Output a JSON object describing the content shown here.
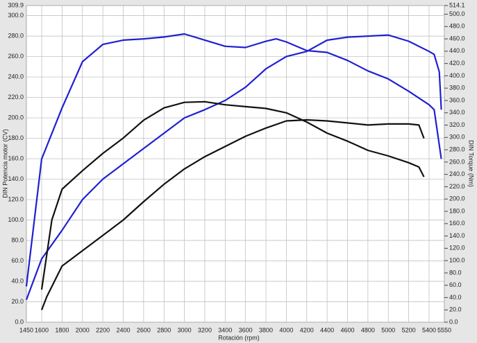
{
  "chart_data": {
    "type": "line",
    "xlabel": "Rotación (rpm)",
    "ylabel": "DIN Potencia motor (CV)",
    "y2label": "DIN Torque (Nm)",
    "xlim": [
      1450,
      5550
    ],
    "xticks": [
      1450,
      1600,
      1800,
      2000,
      2200,
      2400,
      2600,
      2800,
      3000,
      3200,
      3400,
      3600,
      3800,
      4000,
      4200,
      4400,
      4600,
      4800,
      5000,
      5200,
      5400,
      5550
    ],
    "ylim": [
      0,
      309.9
    ],
    "yticks": [
      {
        "value": 0,
        "label": "0.0"
      },
      {
        "value": 20,
        "label": "20.0"
      },
      {
        "value": 40,
        "label": "40.0"
      },
      {
        "value": 60,
        "label": "60.0"
      },
      {
        "value": 80,
        "label": "80.0"
      },
      {
        "value": 100,
        "label": "100.0"
      },
      {
        "value": 120,
        "label": "120.0"
      },
      {
        "value": 140,
        "label": "140.0"
      },
      {
        "value": 160,
        "label": "160.0"
      },
      {
        "value": 180,
        "label": "180.0"
      },
      {
        "value": 200,
        "label": "200.0"
      },
      {
        "value": 220,
        "label": "220.0"
      },
      {
        "value": 240,
        "label": "240.0"
      },
      {
        "value": 260,
        "label": "260.0"
      },
      {
        "value": 280,
        "label": "280.0"
      },
      {
        "value": 300,
        "label": "300.0"
      },
      309.9
    ],
    "y2lim": [
      0,
      514.1
    ],
    "y2ticks": [
      {
        "value": 0,
        "label": "0.0"
      },
      {
        "value": 20,
        "label": "20.0"
      },
      {
        "value": 40,
        "label": "40.0"
      },
      {
        "value": 60,
        "label": "60.0"
      },
      {
        "value": 80,
        "label": "80.0"
      },
      {
        "value": 100,
        "label": "100.0"
      },
      {
        "value": 120,
        "label": "120.0"
      },
      {
        "value": 140,
        "label": "140.0"
      },
      {
        "value": 160,
        "label": "160.0"
      },
      {
        "value": 180,
        "label": "180.0"
      },
      {
        "value": 200,
        "label": "200.0"
      },
      {
        "value": 220,
        "label": "220.0"
      },
      {
        "value": 240,
        "label": "240.0"
      },
      {
        "value": 260,
        "label": "260.0"
      },
      {
        "value": 280,
        "label": "280.0"
      },
      {
        "value": 300,
        "label": "300.0"
      },
      {
        "value": 320,
        "label": "320.0"
      },
      {
        "value": 340,
        "label": "340.0"
      },
      {
        "value": 360,
        "label": "360.0"
      },
      {
        "value": 380,
        "label": "380.0"
      },
      {
        "value": 400,
        "label": "400.0"
      },
      {
        "value": 420,
        "label": "420.0"
      },
      {
        "value": 440,
        "label": "440.0"
      },
      {
        "value": 460,
        "label": "460.0"
      },
      {
        "value": 480,
        "label": "480.0"
      },
      {
        "value": 500,
        "label": "500.0"
      },
      514.1
    ],
    "grid": true,
    "series": [
      {
        "color": "#1f1fd2",
        "axis": "y2",
        "x": [
          1450,
          1600,
          1800,
          2000,
          2200,
          2400,
          2600,
          2800,
          3000,
          3200,
          3400,
          3600,
          3800,
          3900,
          4000,
          4200,
          4400,
          4600,
          4800,
          5000,
          5200,
          5400,
          5450,
          5520
        ],
        "values": [
          58,
          265,
          348,
          423,
          451,
          458,
          460,
          463,
          468,
          458,
          448,
          446,
          456,
          460,
          455,
          441,
          438,
          425,
          408,
          395,
          375,
          353,
          345,
          265
        ]
      },
      {
        "color": "#1f1fd2",
        "x": [
          1450,
          1600,
          1800,
          2000,
          2200,
          2400,
          2600,
          2800,
          3000,
          3200,
          3400,
          3600,
          3800,
          4000,
          4200,
          4400,
          4600,
          4800,
          5000,
          5200,
          5400,
          5450,
          5500,
          5520
        ],
        "values": [
          22,
          62,
          90,
          120,
          140,
          155,
          170,
          185,
          200,
          208,
          217,
          230,
          248,
          260,
          265,
          276,
          279,
          280,
          281,
          275,
          265,
          262,
          245,
          208
        ]
      },
      {
        "color": "#111111",
        "axis": "y2",
        "x": [
          1600,
          1700,
          1800,
          2000,
          2200,
          2400,
          2600,
          2800,
          3000,
          3200,
          3400,
          3600,
          3800,
          4000,
          4200,
          4400,
          4600,
          4800,
          5000,
          5200,
          5300,
          5350
        ],
        "values": [
          53,
          166,
          216,
          246,
          274,
          299,
          328,
          348,
          357,
          358,
          353,
          350,
          347,
          340,
          325,
          307,
          294,
          279,
          270,
          259,
          252,
          236
        ]
      },
      {
        "color": "#111111",
        "x": [
          1600,
          1650,
          1800,
          2000,
          2200,
          2400,
          2600,
          2800,
          3000,
          3200,
          3400,
          3600,
          3800,
          4000,
          4200,
          4400,
          4600,
          4800,
          5000,
          5200,
          5300,
          5350
        ],
        "values": [
          12,
          25,
          55,
          70,
          85,
          100,
          118,
          135,
          150,
          162,
          172,
          182,
          190,
          197,
          198,
          197,
          195,
          193,
          194,
          194,
          193,
          180
        ]
      }
    ]
  }
}
